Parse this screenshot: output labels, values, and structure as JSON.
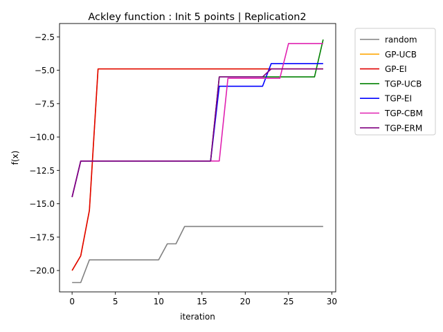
{
  "chart_data": {
    "type": "line",
    "title": "Ackley function : Init 5 points | Replication2",
    "xlabel": "iteration",
    "ylabel": "f(x)",
    "xlim": [
      -1.45,
      30.45
    ],
    "ylim": [
      -21.6,
      -1.5
    ],
    "xticks": [
      0,
      5,
      10,
      15,
      20,
      25,
      30
    ],
    "yticks": [
      -20.0,
      -17.5,
      -15.0,
      -12.5,
      -10.0,
      -7.5,
      -5.0,
      -2.5
    ],
    "ytick_labels": [
      "−20.0",
      "−17.5",
      "−15.0",
      "−12.5",
      "−10.0",
      "−7.5",
      "−5.0",
      "−2.5"
    ],
    "grid": false,
    "legend_position": "outside-top-right",
    "x": [
      0,
      1,
      2,
      3,
      4,
      5,
      6,
      7,
      8,
      9,
      10,
      11,
      12,
      13,
      14,
      15,
      16,
      17,
      18,
      19,
      20,
      21,
      22,
      23,
      24,
      25,
      26,
      27,
      28,
      29
    ],
    "series": [
      {
        "name": "random",
        "color": "#808080",
        "values": [
          -20.9,
          -20.9,
          -19.2,
          -19.2,
          -19.2,
          -19.2,
          -19.2,
          -19.2,
          -19.2,
          -19.2,
          -19.2,
          -18.0,
          -18.0,
          -16.7,
          -16.7,
          -16.7,
          -16.7,
          -16.7,
          -16.7,
          -16.7,
          -16.7,
          -16.7,
          -16.7,
          -16.7,
          -16.7,
          -16.7,
          -16.7,
          -16.7,
          -16.7,
          -16.7
        ]
      },
      {
        "name": "GP-UCB",
        "color": "#ffa500",
        "values": [
          -20.0,
          -18.9,
          -15.5,
          -4.9,
          -4.9,
          -4.9,
          -4.9,
          -4.9,
          -4.9,
          -4.9,
          -4.9,
          -4.9,
          -4.9,
          -4.9,
          -4.9,
          -4.9,
          -4.9,
          -4.9,
          -4.9,
          -4.9,
          -4.9,
          -4.9,
          -4.9,
          -4.9,
          -4.9,
          -4.9,
          -4.9,
          -4.9,
          -4.9,
          -4.9
        ]
      },
      {
        "name": "GP-EI",
        "color": "#e00000",
        "values": [
          -20.0,
          -18.9,
          -15.5,
          -4.9,
          -4.9,
          -4.9,
          -4.9,
          -4.9,
          -4.9,
          -4.9,
          -4.9,
          -4.9,
          -4.9,
          -4.9,
          -4.9,
          -4.9,
          -4.9,
          -4.9,
          -4.9,
          -4.9,
          -4.9,
          -4.9,
          -4.9,
          -4.9,
          -4.9,
          -4.9,
          -4.9,
          -4.9,
          -4.9,
          -4.9
        ]
      },
      {
        "name": "TGP-UCB",
        "color": "#008000",
        "values": [
          -14.5,
          -11.8,
          -11.8,
          -11.8,
          -11.8,
          -11.8,
          -11.8,
          -11.8,
          -11.8,
          -11.8,
          -11.8,
          -11.8,
          -11.8,
          -11.8,
          -11.8,
          -11.8,
          -11.8,
          -5.5,
          -5.5,
          -5.5,
          -5.5,
          -5.5,
          -5.5,
          -5.5,
          -5.5,
          -5.5,
          -5.5,
          -5.5,
          -5.5,
          -2.7
        ]
      },
      {
        "name": "TGP-EI",
        "color": "#0000ff",
        "values": [
          -14.5,
          -11.8,
          -11.8,
          -11.8,
          -11.8,
          -11.8,
          -11.8,
          -11.8,
          -11.8,
          -11.8,
          -11.8,
          -11.8,
          -11.8,
          -11.8,
          -11.8,
          -11.8,
          -11.8,
          -6.2,
          -6.2,
          -6.2,
          -6.2,
          -6.2,
          -6.2,
          -4.5,
          -4.5,
          -4.5,
          -4.5,
          -4.5,
          -4.5,
          -4.5
        ]
      },
      {
        "name": "TGP-CBM",
        "color": "#e020b0",
        "values": [
          -14.5,
          -11.8,
          -11.8,
          -11.8,
          -11.8,
          -11.8,
          -11.8,
          -11.8,
          -11.8,
          -11.8,
          -11.8,
          -11.8,
          -11.8,
          -11.8,
          -11.8,
          -11.8,
          -11.8,
          -11.8,
          -5.6,
          -5.6,
          -5.6,
          -5.6,
          -5.6,
          -5.6,
          -5.6,
          -3.0,
          -3.0,
          -3.0,
          -3.0,
          -3.0
        ]
      },
      {
        "name": "TGP-ERM",
        "color": "#800080",
        "values": [
          -14.5,
          -11.8,
          -11.8,
          -11.8,
          -11.8,
          -11.8,
          -11.8,
          -11.8,
          -11.8,
          -11.8,
          -11.8,
          -11.8,
          -11.8,
          -11.8,
          -11.8,
          -11.8,
          -11.8,
          -5.5,
          -5.5,
          -5.5,
          -5.5,
          -5.5,
          -5.5,
          -4.9,
          -4.9,
          -4.9,
          -4.9,
          -4.9,
          -4.9,
          -4.9
        ]
      }
    ]
  }
}
